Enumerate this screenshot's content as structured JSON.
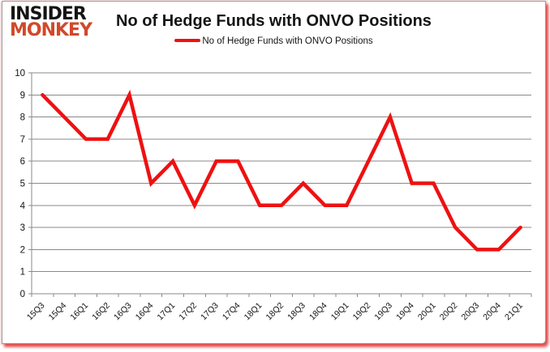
{
  "page": {
    "logo": {
      "line1": "INSIDER",
      "line2": "MONKEY",
      "monkey_color": "#d0492b"
    },
    "title": "No of Hedge Funds with ONVO Positions",
    "legend": {
      "label": "No of Hedge Funds with ONVO Positions",
      "color": "#ee1111"
    }
  },
  "chart_data": {
    "type": "line",
    "title": "No of Hedge Funds with ONVO Positions",
    "categories": [
      "15Q3",
      "15Q4",
      "16Q1",
      "16Q2",
      "16Q3",
      "16Q4",
      "17Q1",
      "17Q2",
      "17Q3",
      "17Q4",
      "18Q1",
      "18Q2",
      "18Q3",
      "18Q4",
      "19Q1",
      "19Q2",
      "19Q3",
      "19Q4",
      "20Q1",
      "20Q2",
      "20Q3",
      "20Q4",
      "21Q1"
    ],
    "series": [
      {
        "name": "No of Hedge Funds with ONVO Positions",
        "values": [
          9,
          8,
          7,
          7,
          9,
          5,
          6,
          4,
          6,
          6,
          4,
          4,
          5,
          4,
          4,
          6,
          8,
          5,
          5,
          3,
          2,
          2,
          3
        ],
        "color": "#ee1111"
      }
    ],
    "xlabel": "",
    "ylabel": "",
    "ylim": [
      0,
      10
    ],
    "ytick_step": 1,
    "grid": true,
    "gridline_color": "#8a8a8a",
    "axis_color": "#8a8a8a",
    "tick_label_color": "#141414",
    "legend_position": "top"
  }
}
